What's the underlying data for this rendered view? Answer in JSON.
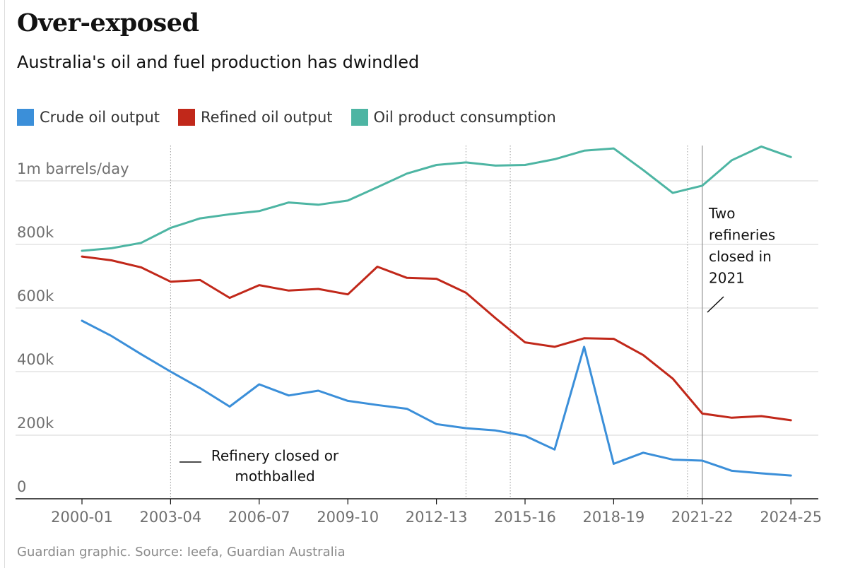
{
  "title": "Over-exposed",
  "subtitle": "Australia's oil and fuel production has dwindled",
  "source": "Guardian graphic. Source: Ieefa, Guardian Australia",
  "colors": {
    "crude": "#3b8fd9",
    "refined": "#c1281a",
    "consumption": "#4db5a3",
    "grid": "#d4d4d4",
    "axis": "#121212",
    "text_muted": "#707070"
  },
  "chart_data": {
    "type": "line",
    "x": [
      "2000-01",
      "2001-02",
      "2002-03",
      "2003-04",
      "2004-05",
      "2005-06",
      "2006-07",
      "2007-08",
      "2008-09",
      "2009-10",
      "2010-11",
      "2011-12",
      "2012-13",
      "2013-14",
      "2014-15",
      "2015-16",
      "2016-17",
      "2017-18",
      "2018-19",
      "2019-20",
      "2020-21",
      "2021-22",
      "2022-23",
      "2023-24",
      "2024-25"
    ],
    "tick_labels": [
      "2000-01",
      "2003-04",
      "2006-07",
      "2009-10",
      "2012-13",
      "2015-16",
      "2018-19",
      "2021-22",
      "2024-25"
    ],
    "xlabel": "",
    "ylabel": "",
    "ylim": [
      0,
      1100000
    ],
    "y_ticks": [
      {
        "value": 0,
        "label": "0"
      },
      {
        "value": 200000,
        "label": "200k"
      },
      {
        "value": 400000,
        "label": "400k"
      },
      {
        "value": 600000,
        "label": "600k"
      },
      {
        "value": 800000,
        "label": "800k"
      },
      {
        "value": 1000000,
        "label": "1m barrels/day"
      }
    ],
    "series": [
      {
        "name": "Crude oil output",
        "color_key": "crude",
        "values": [
          560000,
          512000,
          455000,
          400000,
          348000,
          290000,
          360000,
          325000,
          340000,
          308000,
          295000,
          283000,
          235000,
          222000,
          215000,
          198000,
          155000,
          478000,
          110000,
          145000,
          123000,
          120000,
          88000,
          80000,
          73000
        ]
      },
      {
        "name": "Refined oil output",
        "color_key": "refined",
        "values": [
          762000,
          750000,
          728000,
          683000,
          688000,
          632000,
          672000,
          655000,
          660000,
          643000,
          730000,
          695000,
          692000,
          648000,
          568000,
          492000,
          478000,
          505000,
          503000,
          452000,
          378000,
          268000,
          255000,
          260000,
          247000
        ]
      },
      {
        "name": "Oil product consumption",
        "color_key": "consumption",
        "values": [
          780000,
          788000,
          805000,
          852000,
          882000,
          895000,
          905000,
          932000,
          925000,
          938000,
          980000,
          1023000,
          1050000,
          1058000,
          1048000,
          1050000,
          1068000,
          1095000,
          1102000,
          1034000,
          962000,
          985000,
          1065000,
          1108000,
          1075000
        ]
      }
    ],
    "refinery_closures": [
      3,
      13,
      14.5,
      20.5
    ],
    "annotations": {
      "refinery_line": [
        "Refinery closed or",
        "mothballed"
      ],
      "two_refineries": [
        "Two",
        "refineries",
        "closed in",
        "2021"
      ]
    }
  }
}
